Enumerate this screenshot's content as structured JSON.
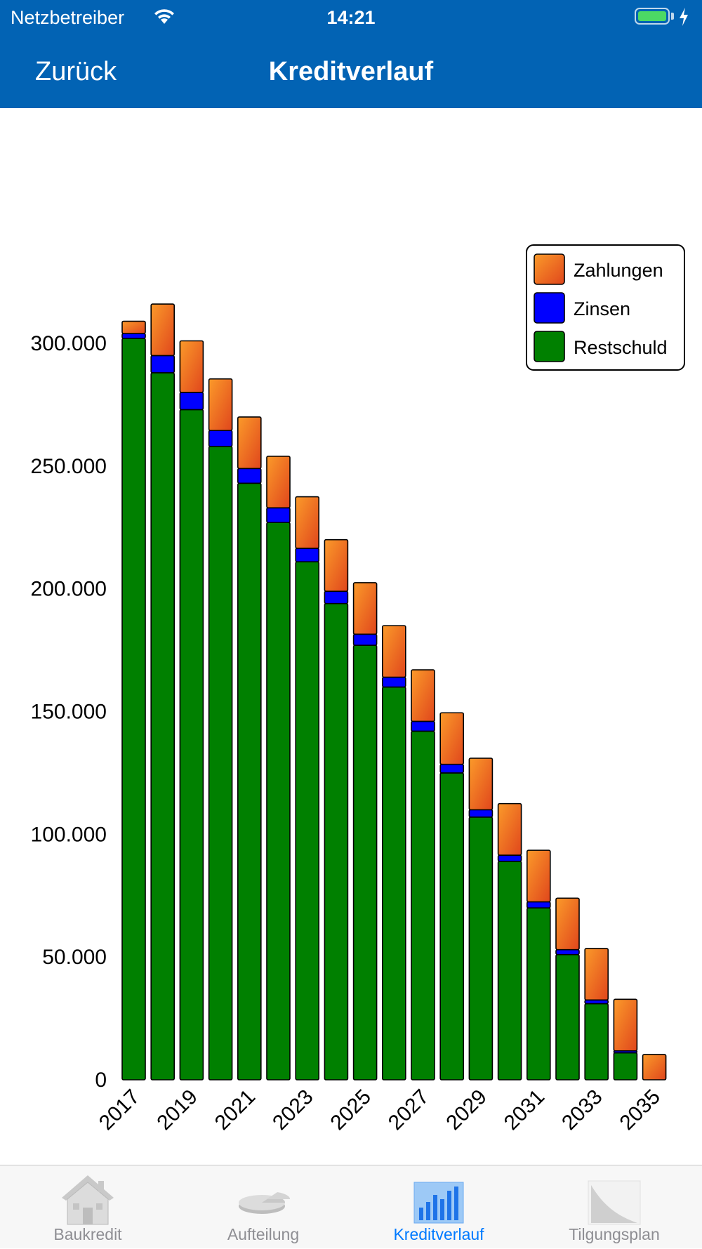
{
  "status_bar": {
    "carrier": "Netzbetreiber",
    "time": "14:21",
    "battery_level": 1.0
  },
  "nav_bar": {
    "back_label": "Zurück",
    "title": "Kreditverlauf"
  },
  "colors": {
    "accent": "#0263b4",
    "zahlungen_top": "#f48a1c",
    "zahlungen_bottom": "#e14e1f",
    "zinsen": "#0000ff",
    "restschuld": "#008000",
    "tab_active": "#007aff",
    "tab_inactive": "#8e8e93"
  },
  "chart_data": {
    "type": "bar",
    "stacked": true,
    "categories": [
      "2017",
      "2018",
      "2019",
      "2020",
      "2021",
      "2022",
      "2023",
      "2024",
      "2025",
      "2026",
      "2027",
      "2028",
      "2029",
      "2030",
      "2031",
      "2032",
      "2033",
      "2034",
      "2035"
    ],
    "x_tick_labels": [
      "2017",
      "",
      "2019",
      "",
      "2021",
      "",
      "2023",
      "",
      "2025",
      "",
      "2027",
      "",
      "2029",
      "",
      "2031",
      "",
      "2033",
      "",
      "2035"
    ],
    "series": [
      {
        "name": "Restschuld",
        "color": "#008000",
        "values": [
          302000,
          288000,
          273000,
          258000,
          243000,
          227000,
          211000,
          194000,
          177000,
          160000,
          142000,
          125000,
          107000,
          89000,
          70000,
          51000,
          31000,
          11000,
          0
        ]
      },
      {
        "name": "Zinsen",
        "color": "#0000ff",
        "values": [
          2000,
          7000,
          7000,
          6500,
          6000,
          6000,
          5500,
          5000,
          4500,
          4000,
          4000,
          3500,
          3000,
          2500,
          2500,
          2000,
          1500,
          800,
          0
        ]
      },
      {
        "name": "Zahlungen",
        "color": "#f48a1c",
        "values": [
          5000,
          21000,
          21000,
          21000,
          21000,
          21000,
          21000,
          21000,
          21000,
          21000,
          21000,
          21000,
          21000,
          21000,
          21000,
          21000,
          21000,
          21000,
          10300
        ]
      }
    ],
    "y_ticks": [
      "0",
      "50.000",
      "100.000",
      "150.000",
      "200.000",
      "250.000",
      "300.000"
    ],
    "y_tick_values": [
      0,
      50000,
      100000,
      150000,
      200000,
      250000,
      300000
    ],
    "ylim": [
      0,
      310000
    ],
    "legend": {
      "position": "top-right",
      "entries": [
        "Zahlungen",
        "Zinsen",
        "Restschuld"
      ]
    },
    "grid": false,
    "title": "",
    "xlabel": "",
    "ylabel": ""
  },
  "tab_bar": {
    "tabs": [
      {
        "label": "Baukredit",
        "icon": "house-icon",
        "active": false
      },
      {
        "label": "Aufteilung",
        "icon": "pie-chart-icon",
        "active": false
      },
      {
        "label": "Kreditverlauf",
        "icon": "bar-chart-icon",
        "active": true
      },
      {
        "label": "Tilgungsplan",
        "icon": "amortization-curve-icon",
        "active": false
      }
    ]
  }
}
